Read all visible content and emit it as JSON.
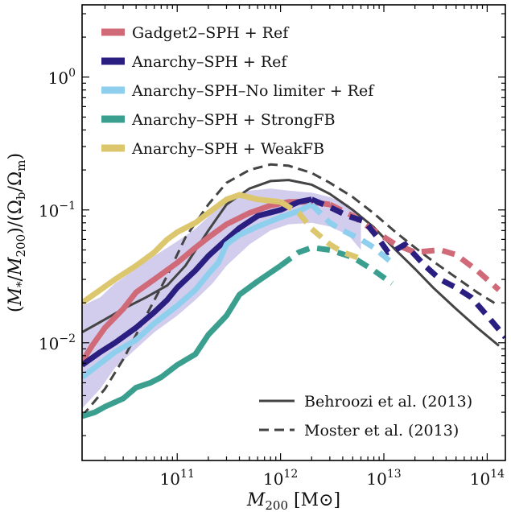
{
  "chart_data": {
    "type": "line",
    "title": "",
    "xlabel": "M200 [M⊙]",
    "ylabel": "(M*/M200)/(Ωb/Ωm)",
    "xscale": "log",
    "yscale": "log",
    "xlim": [
      12000000000.0,
      150000000000000.0
    ],
    "ylim": [
      0.0013,
      3.5
    ],
    "x_ticks": [
      {
        "value": 100000000000.0,
        "base": "10",
        "exp": "11"
      },
      {
        "value": 1000000000000.0,
        "base": "10",
        "exp": "12"
      },
      {
        "value": 10000000000000.0,
        "base": "10",
        "exp": "13"
      },
      {
        "value": 100000000000000.0,
        "base": "10",
        "exp": "14"
      }
    ],
    "y_ticks": [
      {
        "value": 0.01,
        "base": "10",
        "exp": "−2"
      },
      {
        "value": 0.1,
        "base": "10",
        "exp": "−1"
      },
      {
        "value": 1,
        "base": "10",
        "exp": "0"
      }
    ],
    "legend_position": "top-left",
    "legend_bottom_position": "bottom-right",
    "scatter_band": {
      "color": "#9b8fd6",
      "x": [
        12000000000.0,
        18000000000.0,
        25000000000.0,
        40000000000.0,
        60000000000.0,
        100000000000.0,
        150000000000.0,
        220000000000.0,
        300000000000.0,
        500000000000.0,
        800000000000.0,
        1200000000000.0,
        2000000000000.0,
        3000000000000.0,
        4500000000000.0,
        6000000000000.0
      ],
      "upper": [
        0.019,
        0.022,
        0.028,
        0.036,
        0.045,
        0.058,
        0.072,
        0.095,
        0.12,
        0.14,
        0.145,
        0.14,
        0.135,
        0.125,
        0.11,
        0.09
      ],
      "lower": [
        0.0032,
        0.0045,
        0.0065,
        0.009,
        0.012,
        0.016,
        0.021,
        0.028,
        0.038,
        0.055,
        0.07,
        0.078,
        0.08,
        0.075,
        0.065,
        0.05
      ]
    },
    "series": [
      {
        "name": "Gadget2–SPH + Ref",
        "color": "#d06a78",
        "x": [
          12000000000.0,
          15000000000.0,
          20000000000.0,
          30000000000.0,
          40000000000.0,
          60000000000.0,
          100000000000.0,
          150000000000.0,
          200000000000.0,
          300000000000.0,
          500000000000.0,
          800000000000.0,
          1200000000000.0,
          2000000000000.0,
          3000000000000.0
        ],
        "y": [
          0.0072,
          0.0095,
          0.013,
          0.018,
          0.024,
          0.03,
          0.04,
          0.052,
          0.062,
          0.078,
          0.095,
          0.108,
          0.115,
          0.115,
          0.11
        ],
        "x_dash": [
          3000000000000.0,
          5000000000000.0,
          8000000000000.0,
          13000000000000.0,
          20000000000000.0,
          35000000000000.0,
          50000000000000.0,
          80000000000000.0,
          130000000000000.0
        ],
        "y_dash": [
          0.11,
          0.09,
          0.07,
          0.055,
          0.048,
          0.05,
          0.046,
          0.035,
          0.025
        ]
      },
      {
        "name": "Anarchy–SPH + Ref",
        "color": "#2a1f80",
        "x": [
          12000000000.0,
          18000000000.0,
          25000000000.0,
          40000000000.0,
          60000000000.0,
          80000000000.0,
          100000000000.0,
          150000000000.0,
          200000000000.0,
          300000000000.0,
          400000000000.0,
          600000000000.0,
          1000000000000.0,
          1500000000000.0,
          2000000000000.0
        ],
        "y": [
          0.0068,
          0.0085,
          0.01,
          0.013,
          0.017,
          0.021,
          0.026,
          0.035,
          0.045,
          0.06,
          0.073,
          0.09,
          0.1,
          0.115,
          0.12
        ],
        "x_dash": [
          2000000000000.0,
          3000000000000.0,
          4500000000000.0,
          6500000000000.0,
          9000000000000.0,
          11000000000000.0,
          13000000000000.0,
          16000000000000.0,
          18000000000000.0,
          25000000000000.0,
          35000000000000.0,
          50000000000000.0,
          70000000000000.0,
          100000000000000.0,
          150000000000000.0
        ],
        "y_dash": [
          0.12,
          0.105,
          0.09,
          0.082,
          0.06,
          0.048,
          0.05,
          0.055,
          0.05,
          0.038,
          0.03,
          0.026,
          0.022,
          0.016,
          0.011
        ]
      },
      {
        "name": "Anarchy–SPH–No limiter + Ref",
        "color": "#8fcfee",
        "x": [
          12000000000.0,
          18000000000.0,
          25000000000.0,
          40000000000.0,
          60000000000.0,
          100000000000.0,
          150000000000.0,
          200000000000.0,
          250000000000.0,
          300000000000.0,
          400000000000.0,
          600000000000.0,
          1000000000000.0,
          1500000000000.0,
          2000000000000.0
        ],
        "y": [
          0.0055,
          0.007,
          0.0085,
          0.0105,
          0.014,
          0.019,
          0.025,
          0.033,
          0.04,
          0.055,
          0.065,
          0.075,
          0.088,
          0.098,
          0.11
        ],
        "x_dash": [
          2000000000000.0,
          3000000000000.0,
          4000000000000.0,
          6000000000000.0,
          8000000000000.0,
          10000000000000.0,
          13000000000000.0
        ],
        "y_dash": [
          0.11,
          0.08,
          0.07,
          0.06,
          0.052,
          0.045,
          0.038
        ]
      },
      {
        "name": "Anarchy–SPH + StrongFB",
        "color": "#3a9f8e",
        "x": [
          12000000000.0,
          16000000000.0,
          20000000000.0,
          30000000000.0,
          40000000000.0,
          55000000000.0,
          70000000000.0,
          100000000000.0,
          150000000000.0,
          200000000000.0,
          300000000000.0,
          400000000000.0,
          600000000000.0,
          1000000000000.0
        ],
        "y": [
          0.0028,
          0.003,
          0.0033,
          0.0038,
          0.0046,
          0.005,
          0.0055,
          0.0068,
          0.0082,
          0.0115,
          0.016,
          0.023,
          0.029,
          0.038
        ],
        "x_dash": [
          1000000000000.0,
          1500000000000.0,
          2000000000000.0,
          3000000000000.0,
          5000000000000.0,
          8000000000000.0,
          12000000000000.0
        ],
        "y_dash": [
          0.038,
          0.048,
          0.052,
          0.05,
          0.044,
          0.035,
          0.028
        ]
      },
      {
        "name": "Anarchy–SPH + WeakFB",
        "color": "#dcc66e",
        "x": [
          12000000000.0,
          18000000000.0,
          25000000000.0,
          40000000000.0,
          60000000000.0,
          80000000000.0,
          100000000000.0,
          150000000000.0,
          200000000000.0,
          300000000000.0,
          400000000000.0,
          600000000000.0,
          1000000000000.0
        ],
        "y": [
          0.02,
          0.025,
          0.03,
          0.038,
          0.048,
          0.06,
          0.068,
          0.08,
          0.095,
          0.12,
          0.13,
          0.12,
          0.115
        ],
        "x_dash": [
          1000000000000.0,
          1500000000000.0,
          2000000000000.0,
          3000000000000.0,
          4000000000000.0,
          6000000000000.0
        ],
        "y_dash": [
          0.115,
          0.095,
          0.072,
          0.055,
          0.048,
          0.043
        ]
      }
    ],
    "reference_curves": [
      {
        "name": "Behroozi et al. (2013)",
        "style": "solid",
        "color": "#444444",
        "x": [
          12000000000.0,
          20000000000.0,
          30000000000.0,
          50000000000.0,
          80000000000.0,
          120000000000.0,
          200000000000.0,
          300000000000.0,
          500000000000.0,
          800000000000.0,
          1200000000000.0,
          2000000000000.0,
          3000000000000.0,
          5000000000000.0,
          8000000000000.0,
          13000000000000.0,
          20000000000000.0,
          30000000000000.0,
          50000000000000.0,
          80000000000000.0,
          130000000000000.0
        ],
        "y": [
          0.012,
          0.015,
          0.018,
          0.022,
          0.027,
          0.038,
          0.07,
          0.11,
          0.145,
          0.165,
          0.168,
          0.155,
          0.132,
          0.1,
          0.074,
          0.05,
          0.036,
          0.026,
          0.018,
          0.013,
          0.0095
        ]
      },
      {
        "name": "Moster et al. (2013)",
        "style": "dashed",
        "color": "#444444",
        "x": [
          12000000000.0,
          20000000000.0,
          30000000000.0,
          50000000000.0,
          80000000000.0,
          120000000000.0,
          200000000000.0,
          300000000000.0,
          500000000000.0,
          800000000000.0,
          1200000000000.0,
          2000000000000.0,
          3000000000000.0,
          5000000000000.0,
          8000000000000.0,
          13000000000000.0,
          20000000000000.0,
          30000000000000.0,
          50000000000000.0,
          80000000000000.0,
          130000000000000.0
        ],
        "y": [
          0.0028,
          0.0045,
          0.0075,
          0.016,
          0.032,
          0.062,
          0.11,
          0.16,
          0.2,
          0.22,
          0.215,
          0.19,
          0.16,
          0.125,
          0.094,
          0.068,
          0.052,
          0.041,
          0.031,
          0.024,
          0.019
        ]
      }
    ]
  }
}
